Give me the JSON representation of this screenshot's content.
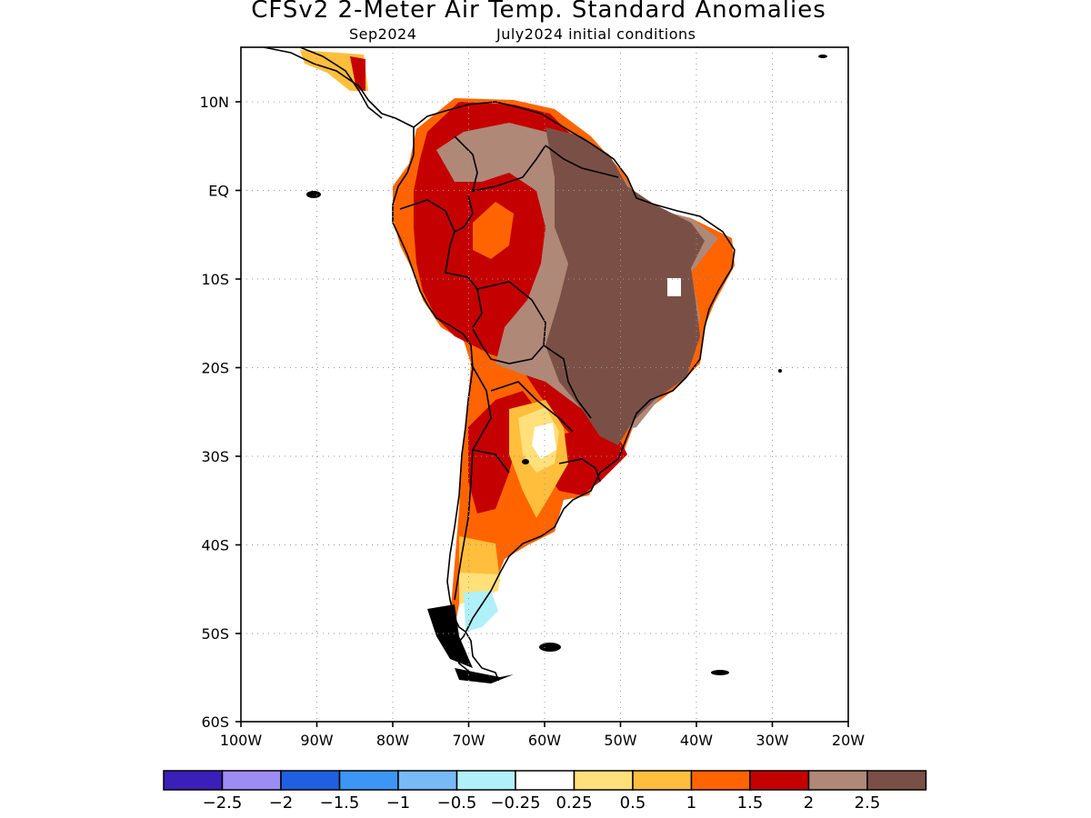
{
  "header": {
    "title": "CFSv2 2-Meter Air Temp. Standard Anomalies",
    "target_month": "Sep2024",
    "initial_conditions": "July2024 initial conditions"
  },
  "map": {
    "lat_labels": [
      "10N",
      "EQ",
      "10S",
      "20S",
      "30S",
      "40S",
      "50S",
      "60S"
    ],
    "lon_labels": [
      "100W",
      "90W",
      "80W",
      "70W",
      "60W",
      "50W",
      "40W",
      "30W",
      "20W"
    ],
    "extent": {
      "lon": [
        -100,
        -20
      ],
      "lat": [
        -60,
        16
      ]
    }
  },
  "colorbar": {
    "colors": [
      "#3a1fb8",
      "#9e8cf5",
      "#2060e0",
      "#3c96f5",
      "#78b9f8",
      "#b0f0f8",
      "#ffffff",
      "#ffe07a",
      "#ffbe3c",
      "#ff6400",
      "#c40000",
      "#b08878",
      "#7a5046"
    ],
    "labels": [
      "-2.5",
      "-2",
      "-1.5",
      "-1",
      "-0.5",
      "-0.25",
      "0.25",
      "0.5",
      "1",
      "1.5",
      "2",
      "2.5"
    ]
  }
}
